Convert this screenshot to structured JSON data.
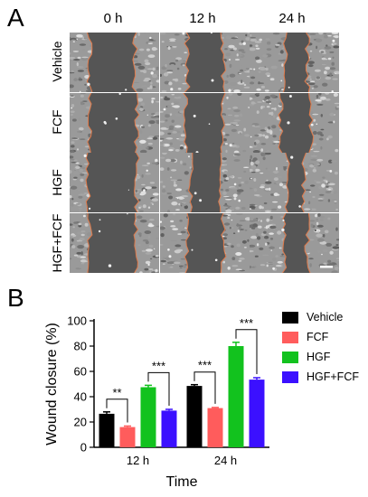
{
  "panel_a": {
    "letter": "A",
    "columns": [
      "0 h",
      "12 h",
      "24 h"
    ],
    "rows": [
      "Vehicle",
      "FCF",
      "HGF",
      "HGF+FCF"
    ]
  },
  "panel_b": {
    "letter": "B"
  },
  "chart_data": {
    "type": "bar",
    "categories": [
      "12 h",
      "24 h"
    ],
    "series": [
      {
        "name": "Vehicle",
        "color": "#000000",
        "values": [
          26.5,
          48.5
        ],
        "errors": [
          1.5,
          1.0
        ]
      },
      {
        "name": "FCF",
        "color": "#ff5c5c",
        "values": [
          16.0,
          31.0
        ],
        "errors": [
          0.8,
          0.5
        ]
      },
      {
        "name": "HGF",
        "color": "#12c21e",
        "values": [
          47.5,
          80.0
        ],
        "errors": [
          1.5,
          3.0
        ]
      },
      {
        "name": "HGF+FCF",
        "color": "#3b10ff",
        "values": [
          29.0,
          53.5
        ],
        "errors": [
          1.0,
          1.5
        ]
      }
    ],
    "xlabel": "Time",
    "ylabel": "Wound closure (%)",
    "ylim": [
      0,
      100
    ],
    "yticks": [
      0,
      20,
      40,
      60,
      80,
      100
    ],
    "legend_position": "right",
    "significance": [
      {
        "category": "12 h",
        "from": "Vehicle",
        "to": "FCF",
        "label": "**"
      },
      {
        "category": "12 h",
        "from": "HGF",
        "to": "HGF+FCF",
        "label": "***"
      },
      {
        "category": "24 h",
        "from": "Vehicle",
        "to": "FCF",
        "label": "***"
      },
      {
        "category": "24 h",
        "from": "HGF",
        "to": "HGF+FCF",
        "label": "***"
      }
    ]
  }
}
